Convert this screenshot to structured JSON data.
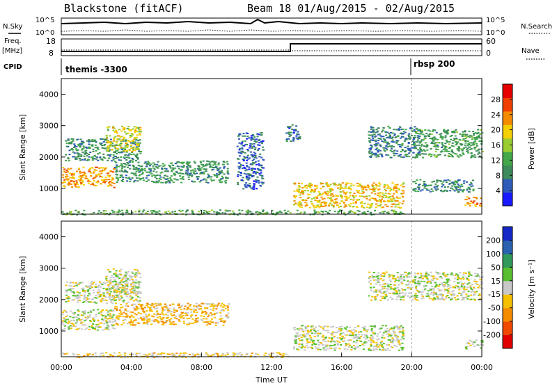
{
  "header": {
    "station": "Blackstone (fitACF)",
    "beam_info": "Beam 18 01/Aug/2015 - 02/Aug/2015"
  },
  "left_labels": {
    "nsky": "N.Sky",
    "freq": "Freq.",
    "freq_unit": "[MHz]",
    "cpid": "CPID"
  },
  "right_labels": {
    "nsearch": "N.Search",
    "nave": "Nave"
  },
  "noise_panel": {
    "tick_top": "10^5",
    "tick_bottom": "10^0"
  },
  "freq_panel": {
    "left_ticks": [
      "18",
      "8"
    ],
    "right_ticks": [
      "60",
      "0"
    ]
  },
  "cpid_panel": {
    "labels": [
      {
        "text": "themis -3300",
        "start_hour": 0
      },
      {
        "text": "rbsp 200",
        "start_hour": 20.0
      }
    ]
  },
  "colors": {
    "power": [
      "#1a1aff",
      "#2e5cb8",
      "#3d8a5a",
      "#44a84a",
      "#9acd32",
      "#f5d000",
      "#f58c00",
      "#f04000",
      "#e60000"
    ],
    "velocity": [
      "#e00000",
      "#f04a00",
      "#f58c00",
      "#f5c000",
      "#c8c8c8",
      "#58c030",
      "#2f9a5a",
      "#2a62b0",
      "#1428c8"
    ]
  },
  "chart_data": [
    {
      "type": "heatmap",
      "title": "",
      "xlabel": "",
      "ylabel": "Slant Range [km]",
      "xlim": [
        0,
        24
      ],
      "ylim": [
        180,
        4500
      ],
      "yticks": [
        1000,
        2000,
        3000,
        4000
      ],
      "colorbar": {
        "label": "Power [dB]",
        "range": [
          0,
          32
        ],
        "ticks": [
          "4",
          "8",
          "12",
          "16",
          "20",
          "24",
          "28"
        ]
      },
      "regions": [
        {
          "x0": 0.0,
          "x1": 3.0,
          "y0": 1050,
          "y1": 1700,
          "value": 22
        },
        {
          "x0": 0.2,
          "x1": 4.5,
          "y0": 1900,
          "y1": 2600,
          "value": 9
        },
        {
          "x0": 2.5,
          "x1": 4.5,
          "y0": 2200,
          "y1": 3000,
          "value": 18
        },
        {
          "x0": 3.0,
          "x1": 9.5,
          "y0": 1200,
          "y1": 1900,
          "value": 10
        },
        {
          "x0": 10.0,
          "x1": 11.5,
          "y0": 1000,
          "y1": 2800,
          "value": 6
        },
        {
          "x0": 12.8,
          "x1": 13.6,
          "y0": 2500,
          "y1": 3100,
          "value": 7
        },
        {
          "x0": 13.2,
          "x1": 19.5,
          "y0": 400,
          "y1": 1200,
          "value": 20
        },
        {
          "x0": 17.5,
          "x1": 20.5,
          "y0": 2000,
          "y1": 3000,
          "value": 8
        },
        {
          "x0": 20.0,
          "x1": 24.0,
          "y0": 2000,
          "y1": 2900,
          "value": 11
        },
        {
          "x0": 20.0,
          "x1": 23.5,
          "y0": 900,
          "y1": 1300,
          "value": 9
        },
        {
          "x0": 23.0,
          "x1": 24.0,
          "y0": 450,
          "y1": 750,
          "value": 24
        },
        {
          "x0": 0.0,
          "x1": 19.5,
          "y0": 180,
          "y1": 330,
          "value": 12
        }
      ]
    },
    {
      "type": "heatmap",
      "title": "",
      "xlabel": "Time UT",
      "ylabel": "Slant Range [km]",
      "xlim": [
        0,
        24
      ],
      "ylim": [
        180,
        4500
      ],
      "yticks": [
        1000,
        2000,
        3000,
        4000
      ],
      "xticks": [
        "00:00",
        "04:00",
        "08:00",
        "12:00",
        "16:00",
        "20:00",
        "00:00"
      ],
      "colorbar": {
        "label": "Velocity [m s⁻¹]",
        "range": [
          -250,
          250
        ],
        "ticks": [
          "-200",
          "-100",
          "-50",
          "-15",
          "15",
          "50",
          "100",
          "200"
        ]
      },
      "regions": [
        {
          "x0": 0.0,
          "x1": 3.0,
          "y0": 1050,
          "y1": 1700,
          "value": 0
        },
        {
          "x0": 0.2,
          "x1": 4.5,
          "y0": 1900,
          "y1": 2600,
          "value": 0
        },
        {
          "x0": 2.5,
          "x1": 4.5,
          "y0": 2200,
          "y1": 3000,
          "value": 0
        },
        {
          "x0": 3.0,
          "x1": 9.5,
          "y0": 1200,
          "y1": 1900,
          "value": -60
        },
        {
          "x0": 13.2,
          "x1": 19.5,
          "y0": 400,
          "y1": 1200,
          "value": 0
        },
        {
          "x0": 17.5,
          "x1": 24.0,
          "y0": 2000,
          "y1": 2900,
          "value": 0
        },
        {
          "x0": 23.0,
          "x1": 24.0,
          "y0": 450,
          "y1": 750,
          "value": 0
        },
        {
          "x0": 0.0,
          "x1": 13.0,
          "y0": 180,
          "y1": 330,
          "value": -40
        }
      ]
    }
  ]
}
